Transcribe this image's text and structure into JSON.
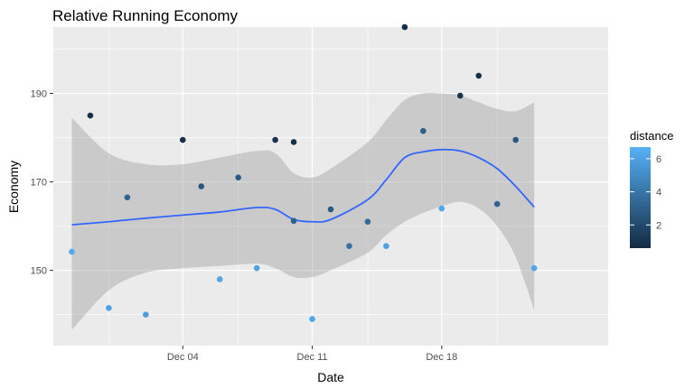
{
  "chart_data": {
    "type": "scatter",
    "title": "Relative Running Economy",
    "xlabel": "Date",
    "ylabel": "Economy",
    "x_ticks": [
      {
        "date": "2016-12-04",
        "label": "Dec 04"
      },
      {
        "date": "2016-12-11",
        "label": "Dec 11"
      },
      {
        "date": "2016-12-18",
        "label": "Dec 18"
      }
    ],
    "y_ticks": [
      150,
      170,
      190
    ],
    "x_range": [
      "2016-11-27",
      "2016-12-27"
    ],
    "y_range": [
      133,
      205
    ],
    "grid": true,
    "legend": {
      "title": "distance",
      "position": "right",
      "ticks": [
        2,
        4,
        6
      ],
      "range": [
        0.6,
        6.7
      ],
      "colors": {
        "low": "#132B43",
        "high": "#56B1F7"
      }
    },
    "smooth_color": "#3366FF",
    "band_color": "#999999",
    "points": [
      {
        "x": "2016-11-28",
        "y": 154.2,
        "distance": 6.4
      },
      {
        "x": "2016-11-29",
        "y": 185.0,
        "distance": 0.8
      },
      {
        "x": "2016-11-30",
        "y": 141.5,
        "distance": 6.0
      },
      {
        "x": "2016-12-01",
        "y": 166.5,
        "distance": 3.2
      },
      {
        "x": "2016-12-02",
        "y": 140.0,
        "distance": 5.8
      },
      {
        "x": "2016-12-04",
        "y": 179.5,
        "distance": 0.8
      },
      {
        "x": "2016-12-05",
        "y": 169.0,
        "distance": 2.6
      },
      {
        "x": "2016-12-06",
        "y": 148.0,
        "distance": 6.2
      },
      {
        "x": "2016-12-07",
        "y": 171.0,
        "distance": 2.8
      },
      {
        "x": "2016-12-08",
        "y": 150.5,
        "distance": 6.0
      },
      {
        "x": "2016-12-09",
        "y": 179.5,
        "distance": 1.0
      },
      {
        "x": "2016-12-10",
        "y": 179.0,
        "distance": 0.8
      },
      {
        "x": "2016-12-10",
        "y": 161.2,
        "distance": 3.0
      },
      {
        "x": "2016-12-11",
        "y": 139.0,
        "distance": 6.2
      },
      {
        "x": "2016-12-12",
        "y": 163.8,
        "distance": 2.8
      },
      {
        "x": "2016-12-13",
        "y": 155.5,
        "distance": 3.8
      },
      {
        "x": "2016-12-14",
        "y": 161.0,
        "distance": 3.4
      },
      {
        "x": "2016-12-15",
        "y": 155.5,
        "distance": 6.0
      },
      {
        "x": "2016-12-16",
        "y": 205.0,
        "distance": 0.8
      },
      {
        "x": "2016-12-17",
        "y": 181.5,
        "distance": 3.0
      },
      {
        "x": "2016-12-18",
        "y": 164.0,
        "distance": 6.2
      },
      {
        "x": "2016-12-19",
        "y": 189.5,
        "distance": 1.0
      },
      {
        "x": "2016-12-20",
        "y": 194.0,
        "distance": 0.8
      },
      {
        "x": "2016-12-21",
        "y": 165.0,
        "distance": 3.2
      },
      {
        "x": "2016-12-22",
        "y": 179.5,
        "distance": 2.6
      },
      {
        "x": "2016-12-23",
        "y": 150.5,
        "distance": 6.2
      }
    ],
    "smooth": [
      {
        "x": "2016-11-28",
        "y": 160.3,
        "lo": 136.5,
        "hi": 184.5
      },
      {
        "x": "2016-11-30",
        "y": 161.0,
        "lo": 145.5,
        "hi": 176.5
      },
      {
        "x": "2016-12-02",
        "y": 161.8,
        "lo": 149.5,
        "hi": 174.0
      },
      {
        "x": "2016-12-04",
        "y": 162.5,
        "lo": 150.5,
        "hi": 174.0
      },
      {
        "x": "2016-12-06",
        "y": 163.2,
        "lo": 151.0,
        "hi": 175.5
      },
      {
        "x": "2016-12-08",
        "y": 164.2,
        "lo": 151.5,
        "hi": 177.0
      },
      {
        "x": "2016-12-09",
        "y": 163.8,
        "lo": 150.5,
        "hi": 176.5
      },
      {
        "x": "2016-12-10",
        "y": 161.5,
        "lo": 148.5,
        "hi": 172.0
      },
      {
        "x": "2016-12-11",
        "y": 161.0,
        "lo": 148.5,
        "hi": 171.0
      },
      {
        "x": "2016-12-12",
        "y": 161.5,
        "lo": 150.0,
        "hi": 173.0
      },
      {
        "x": "2016-12-14",
        "y": 166.0,
        "lo": 154.0,
        "hi": 179.0
      },
      {
        "x": "2016-12-15",
        "y": 170.5,
        "lo": 158.0,
        "hi": 184.0
      },
      {
        "x": "2016-12-16",
        "y": 175.5,
        "lo": 161.0,
        "hi": 188.5
      },
      {
        "x": "2016-12-17",
        "y": 176.8,
        "lo": 163.0,
        "hi": 190.0
      },
      {
        "x": "2016-12-18",
        "y": 177.3,
        "lo": 164.5,
        "hi": 190.0
      },
      {
        "x": "2016-12-19",
        "y": 177.0,
        "lo": 165.5,
        "hi": 189.5
      },
      {
        "x": "2016-12-20",
        "y": 175.5,
        "lo": 164.0,
        "hi": 188.0
      },
      {
        "x": "2016-12-21",
        "y": 173.0,
        "lo": 160.0,
        "hi": 186.5
      },
      {
        "x": "2016-12-22",
        "y": 169.0,
        "lo": 153.0,
        "hi": 186.0
      },
      {
        "x": "2016-12-23",
        "y": 164.3,
        "lo": 141.0,
        "hi": 188.0
      }
    ]
  }
}
